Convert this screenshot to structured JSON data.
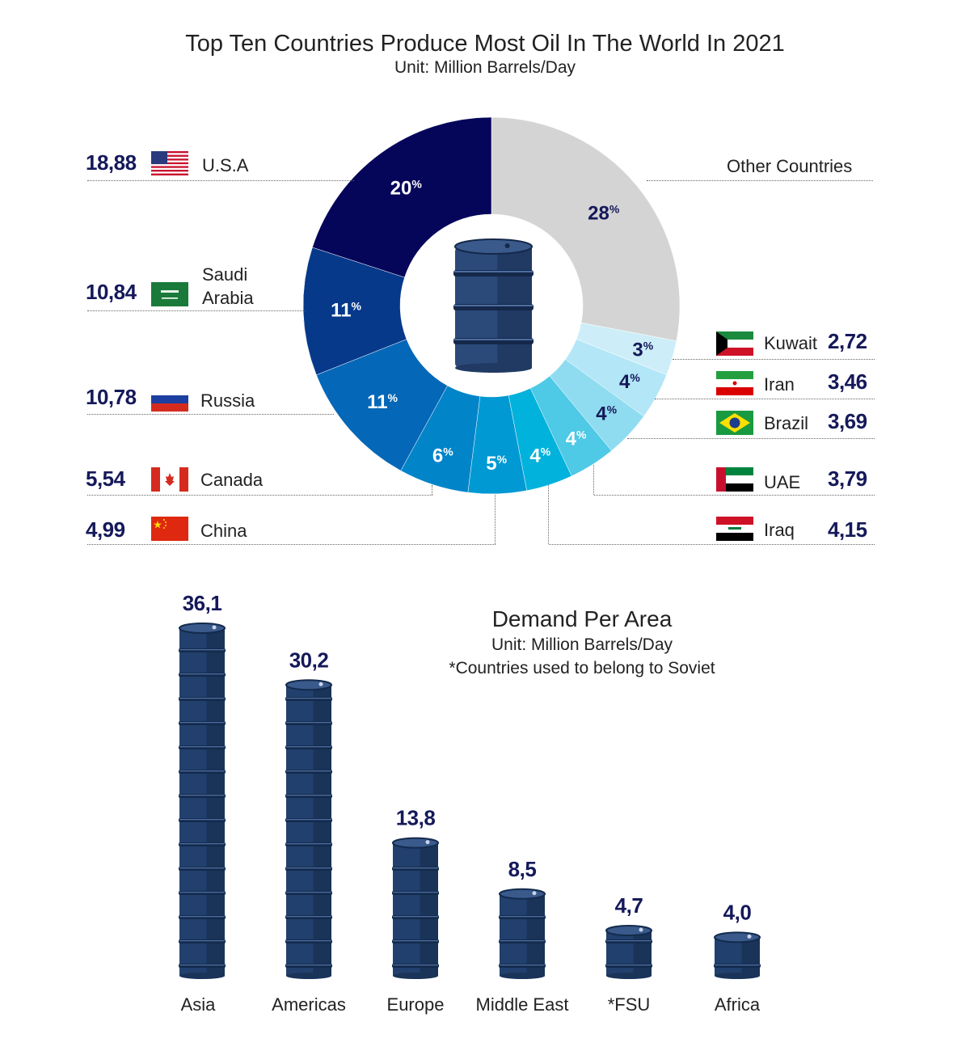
{
  "header": {
    "title": "Top Ten Countries Produce Most Oil In The World In 2021",
    "subtitle": "Unit: Million Barrels/Day"
  },
  "countries_left": [
    {
      "name": "U.S.A",
      "value": "18,88",
      "flag": "usa-flag"
    },
    {
      "name": "Saudi\nArabia",
      "value": "10,84",
      "flag": "saudi-flag"
    },
    {
      "name": "Russia",
      "value": "10,78",
      "flag": "russia-flag"
    },
    {
      "name": "Canada",
      "value": "5,54",
      "flag": "canada-flag"
    },
    {
      "name": "China",
      "value": "4,99",
      "flag": "china-flag"
    }
  ],
  "countries_right": [
    {
      "name": "Kuwait",
      "value": "2,72",
      "flag": "kuwait-flag"
    },
    {
      "name": "Iran",
      "value": "3,46",
      "flag": "iran-flag"
    },
    {
      "name": "Brazil",
      "value": "3,69",
      "flag": "brazil-flag"
    },
    {
      "name": "UAE",
      "value": "3,79",
      "flag": "uae-flag"
    },
    {
      "name": "Iraq",
      "value": "4,15",
      "flag": "iraq-flag"
    }
  ],
  "other_label": "Other Countries",
  "chart_data": [
    {
      "type": "pie",
      "title": "Top Ten Countries Produce Most Oil In The World In 2021",
      "subtitle": "Unit: Million Barrels/Day",
      "donut": true,
      "center_icon": "oil-barrel-icon",
      "slices": [
        {
          "label": "Other Countries",
          "percent": 28,
          "text": "28",
          "color": "#d4d4d4"
        },
        {
          "label": "Kuwait",
          "percent": 3,
          "text": "3",
          "color": "#cdeef8"
        },
        {
          "label": "Iran",
          "percent": 4,
          "text": "4",
          "color": "#b3e6f6"
        },
        {
          "label": "Brazil",
          "percent": 4,
          "text": "4",
          "color": "#8fdcf0"
        },
        {
          "label": "UAE",
          "percent": 4,
          "text": "4",
          "color": "#4ec9e6"
        },
        {
          "label": "Iraq",
          "percent": 4,
          "text": "4",
          "color": "#00b2dc"
        },
        {
          "label": "China",
          "percent": 5,
          "text": "5",
          "color": "#0199d3"
        },
        {
          "label": "Canada",
          "percent": 6,
          "text": "6",
          "color": "#0284c9"
        },
        {
          "label": "Russia",
          "percent": 11,
          "text": "11",
          "color": "#0567b7"
        },
        {
          "label": "Saudi Arabia",
          "percent": 11,
          "text": "11",
          "color": "#06398a"
        },
        {
          "label": "U.S.A",
          "percent": 20,
          "text": "20",
          "color": "#05055a"
        }
      ],
      "percent_symbol": "%"
    },
    {
      "type": "bar",
      "title": "Demand Per Area",
      "subtitle": "Unit: Million Barrels/Day",
      "note": "*Countries used to belong to Soviet",
      "categories": [
        "Asia",
        "Americas",
        "Europe",
        "Middle East",
        "*FSU",
        "Africa"
      ],
      "values": [
        36.1,
        30.2,
        13.8,
        8.5,
        4.7,
        4.0
      ],
      "value_labels": [
        "36,1",
        "30,2",
        "13,8",
        "8,5",
        "4,7",
        "4,0"
      ],
      "bar_style": "stacked-oil-barrels",
      "color": "#22406e"
    }
  ]
}
